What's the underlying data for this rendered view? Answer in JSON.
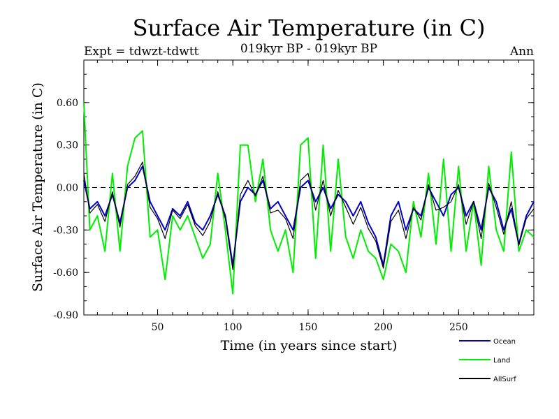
{
  "chart_data": {
    "type": "line",
    "title": "Surface Air Temperature (in C)",
    "subtitle": "019kyr BP - 019kyr BP",
    "left_label": "Expt = tdwzt-tdwtt",
    "right_label": "Ann",
    "xlabel": "Time (in years since start)",
    "ylabel": "Surface Air Temperature (in C)",
    "xlim": [
      1,
      300
    ],
    "ylim": [
      -0.9,
      0.9
    ],
    "xticks": [
      50,
      100,
      150,
      200,
      250
    ],
    "yticks": [
      -0.9,
      -0.6,
      -0.3,
      0.0,
      0.3,
      0.6
    ],
    "ytick_labels": [
      "-0.90",
      "-0.60",
      "-0.30",
      "0.00",
      "0.30",
      "0.60"
    ],
    "zero_line": "dashed",
    "legend_position": "bottom-right",
    "x": [
      1,
      5,
      10,
      15,
      20,
      25,
      30,
      35,
      40,
      45,
      50,
      55,
      60,
      65,
      70,
      75,
      80,
      85,
      90,
      95,
      100,
      105,
      110,
      115,
      120,
      125,
      130,
      135,
      140,
      145,
      150,
      155,
      160,
      165,
      170,
      175,
      180,
      185,
      190,
      195,
      200,
      205,
      210,
      215,
      220,
      225,
      230,
      235,
      240,
      245,
      250,
      255,
      260,
      265,
      270,
      275,
      280,
      285,
      290,
      295,
      300
    ],
    "series": [
      {
        "name": "Ocean",
        "color": "#0000cc",
        "values": [
          0.05,
          -0.15,
          -0.1,
          -0.2,
          -0.05,
          -0.25,
          0.0,
          0.05,
          0.15,
          -0.1,
          -0.2,
          -0.3,
          -0.15,
          -0.2,
          -0.1,
          -0.25,
          -0.3,
          -0.2,
          -0.05,
          -0.2,
          -0.55,
          -0.1,
          0.0,
          -0.05,
          0.05,
          -0.15,
          -0.1,
          -0.2,
          -0.3,
          0.0,
          0.05,
          -0.1,
          0.0,
          -0.15,
          -0.05,
          -0.1,
          -0.2,
          -0.1,
          -0.25,
          -0.35,
          -0.55,
          -0.2,
          -0.1,
          -0.3,
          -0.15,
          -0.2,
          0.0,
          -0.1,
          -0.2,
          -0.05,
          0.0,
          -0.2,
          -0.1,
          -0.3,
          0.0,
          -0.1,
          -0.3,
          -0.15,
          -0.4,
          -0.2,
          -0.1
        ]
      },
      {
        "name": "Land",
        "color": "#00ee00",
        "values": [
          0.6,
          -0.3,
          -0.2,
          -0.45,
          0.1,
          -0.45,
          0.15,
          0.35,
          0.4,
          -0.35,
          -0.3,
          -0.65,
          -0.2,
          -0.3,
          -0.2,
          -0.35,
          -0.5,
          -0.4,
          0.1,
          -0.3,
          -0.75,
          0.3,
          0.3,
          -0.1,
          0.2,
          -0.3,
          -0.45,
          -0.3,
          -0.6,
          0.3,
          0.35,
          -0.5,
          0.3,
          -0.45,
          0.2,
          -0.35,
          -0.5,
          -0.3,
          -0.45,
          -0.5,
          -0.65,
          -0.4,
          -0.45,
          -0.6,
          -0.1,
          -0.35,
          0.1,
          -0.4,
          0.2,
          -0.45,
          0.15,
          -0.45,
          -0.1,
          -0.55,
          0.15,
          -0.3,
          -0.45,
          0.25,
          -0.45,
          -0.3,
          -0.35
        ]
      },
      {
        "name": "AllSurf",
        "color": "#000000",
        "values": [
          0.1,
          -0.18,
          -0.12,
          -0.24,
          -0.03,
          -0.28,
          0.02,
          0.08,
          0.18,
          -0.14,
          -0.22,
          -0.36,
          -0.16,
          -0.22,
          -0.12,
          -0.27,
          -0.34,
          -0.24,
          -0.03,
          -0.22,
          -0.58,
          -0.05,
          0.05,
          -0.06,
          0.08,
          -0.18,
          -0.16,
          -0.22,
          -0.36,
          0.05,
          0.1,
          -0.16,
          0.05,
          -0.2,
          -0.02,
          -0.14,
          -0.26,
          -0.14,
          -0.29,
          -0.38,
          -0.57,
          -0.24,
          -0.16,
          -0.36,
          -0.14,
          -0.23,
          0.02,
          -0.16,
          -0.14,
          -0.1,
          0.02,
          -0.26,
          -0.1,
          -0.36,
          0.03,
          -0.14,
          -0.33,
          -0.1,
          -0.41,
          -0.22,
          -0.15
        ]
      }
    ]
  }
}
